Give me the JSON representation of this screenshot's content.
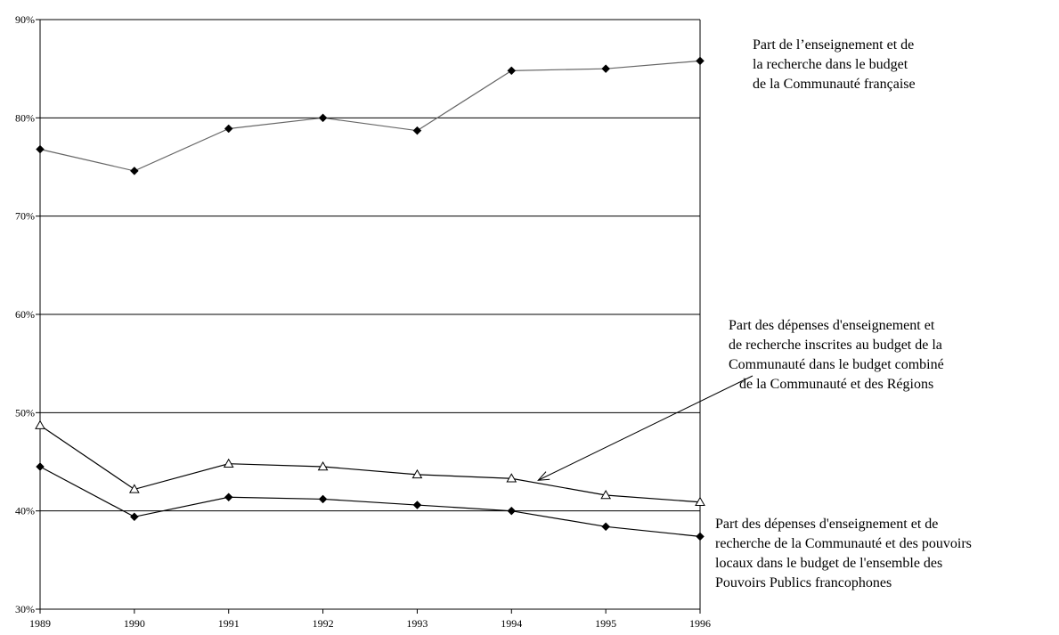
{
  "chart_data": {
    "type": "line",
    "title": "",
    "xlabel": "",
    "ylabel": "",
    "categories": [
      "1989",
      "1990",
      "1991",
      "1992",
      "1993",
      "1994",
      "1995",
      "1996"
    ],
    "y_ticks": [
      "30%",
      "40%",
      "50%",
      "60%",
      "70%",
      "80%",
      "90%"
    ],
    "ylim": [
      30,
      90
    ],
    "grid": true,
    "series": [
      {
        "key": "enseignement_budget_communaute",
        "marker": "diamond",
        "line_color": "#666666",
        "values": [
          76.8,
          74.6,
          78.9,
          80.0,
          78.7,
          84.8,
          85.0,
          85.8
        ]
      },
      {
        "key": "budget_combine_communaute_regions",
        "marker": "triangle-open",
        "line_color": "#000000",
        "values": [
          48.7,
          42.2,
          44.8,
          44.5,
          43.7,
          43.3,
          41.6,
          40.9
        ]
      },
      {
        "key": "ensemble_pouvoirs_publics",
        "marker": "diamond",
        "line_color": "#000000",
        "values": [
          44.5,
          39.4,
          41.4,
          41.2,
          40.6,
          40.0,
          38.4,
          37.4
        ]
      }
    ],
    "annotations": [
      {
        "series_key": "enseignement_budget_communaute",
        "lines": [
          "Part de l’enseignement et de",
          "la recherche dans le budget",
          "de la Communauté française"
        ]
      },
      {
        "series_key": "budget_combine_communaute_regions",
        "lines": [
          "Part des dépenses d'enseignement et",
          "de recherche inscrites au budget de la",
          "Communauté dans le budget combiné",
          "de la Communauté et des Régions"
        ],
        "arrow_target": {
          "x": "1994",
          "y": 43.3
        }
      },
      {
        "series_key": "ensemble_pouvoirs_publics",
        "lines": [
          "Part des dépenses d'enseignement et de",
          "recherche de la Communauté et des pouvoirs",
          "locaux dans le budget de l'ensemble des",
          "Pouvoirs Publics francophones"
        ]
      }
    ]
  }
}
